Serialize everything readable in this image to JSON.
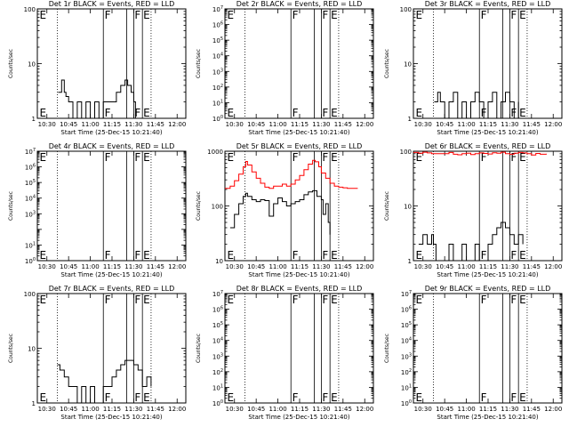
{
  "figure": {
    "x_tick_labels": [
      "10:30",
      "10:45",
      "11:00",
      "11:15",
      "11:30",
      "11:45",
      "12:00"
    ]
  },
  "chart_data": [
    {
      "type": "line",
      "title": "Det 1r BLACK = Events, RED = LLD",
      "xlabel": "Start Time (25-Dec-15 10:21:40)",
      "ylabel": "Counts/sec",
      "xlim": [
        10.39,
        12.1
      ],
      "ylim": [
        1,
        100
      ],
      "yscale": "log",
      "y_tick_labels": [
        {
          "v": 1,
          "label": "1"
        },
        {
          "v": 10,
          "label": "10"
        },
        {
          "v": 100,
          "label": "100"
        }
      ],
      "dotted_lines_x": [
        10.62,
        11.7
      ],
      "solid_lines_x": [
        11.15,
        11.42,
        11.5,
        11.6
      ],
      "markers": [
        {
          "x": 10.415,
          "label": "E"
        },
        {
          "x": 11.165,
          "label": "F"
        },
        {
          "x": 11.51,
          "label": "F"
        },
        {
          "x": 11.61,
          "label": "E"
        }
      ],
      "series": [
        {
          "name": "Events",
          "color": "#000000",
          "x": [
            10.63,
            10.67,
            10.7,
            10.72,
            10.75,
            10.8,
            10.85,
            10.9,
            10.95,
            11,
            11.05,
            11.1,
            11.15,
            11.2,
            11.25,
            11.3,
            11.35,
            11.4,
            11.43,
            11.47,
            11.5,
            11.52
          ],
          "y": [
            3,
            5,
            3,
            2.5,
            2,
            1,
            2,
            1,
            2,
            1,
            2,
            1,
            2,
            2,
            2,
            3,
            4,
            5,
            4,
            3,
            2,
            1
          ]
        }
      ]
    },
    {
      "type": "line",
      "title": "Det 2r BLACK = Events, RED = LLD",
      "xlabel": "Start Time (25-Dec-15 10:21:40)",
      "ylabel": "Counts/sec",
      "xlim": [
        10.39,
        12.1
      ],
      "ylim": [
        1,
        10000000
      ],
      "yscale": "log",
      "y_tick_labels": [
        {
          "v": 1,
          "label": "10^0"
        },
        {
          "v": 10,
          "label": "10^1"
        },
        {
          "v": 100,
          "label": "10^2"
        },
        {
          "v": 1000,
          "label": "10^3"
        },
        {
          "v": 10000,
          "label": "10^4"
        },
        {
          "v": 100000,
          "label": "10^5"
        },
        {
          "v": 1000000,
          "label": "10^6"
        },
        {
          "v": 10000000,
          "label": "10^7"
        }
      ],
      "dotted_lines_x": [
        10.62,
        11.7
      ],
      "solid_lines_x": [
        11.15,
        11.42,
        11.5,
        11.6
      ],
      "markers": [
        {
          "x": 10.415,
          "label": "E"
        },
        {
          "x": 11.165,
          "label": "F"
        },
        {
          "x": 11.51,
          "label": "F"
        },
        {
          "x": 11.61,
          "label": "E"
        }
      ],
      "series": []
    },
    {
      "type": "line",
      "title": "Det 3r BLACK = Events, RED = LLD",
      "xlabel": "Start Time (25-Dec-15 10:21:40)",
      "ylabel": "Counts/sec",
      "xlim": [
        10.39,
        12.1
      ],
      "ylim": [
        1,
        100
      ],
      "yscale": "log",
      "y_tick_labels": [
        {
          "v": 1,
          "label": "1"
        },
        {
          "v": 10,
          "label": "10"
        },
        {
          "v": 100,
          "label": "100"
        }
      ],
      "dotted_lines_x": [
        10.62,
        11.7
      ],
      "solid_lines_x": [
        11.15,
        11.42,
        11.5,
        11.6
      ],
      "markers": [
        {
          "x": 10.415,
          "label": "E"
        },
        {
          "x": 11.165,
          "label": "F"
        },
        {
          "x": 11.51,
          "label": "F"
        },
        {
          "x": 11.61,
          "label": "E"
        }
      ],
      "series": [
        {
          "name": "Events",
          "color": "#000000",
          "x": [
            10.63,
            10.67,
            10.7,
            10.75,
            10.8,
            10.85,
            10.9,
            10.95,
            11,
            11.05,
            11.1,
            11.15,
            11.2,
            11.25,
            11.3,
            11.35,
            11.4,
            11.45,
            11.5,
            11.55,
            11.6
          ],
          "y": [
            2,
            3,
            2,
            1,
            2,
            3,
            1,
            2,
            1,
            2,
            3,
            2,
            1,
            2,
            3,
            1,
            2,
            3,
            2,
            1,
            2
          ]
        }
      ]
    },
    {
      "type": "line",
      "title": "Det 4r BLACK = Events, RED = LLD",
      "xlabel": "Start Time (25-Dec-15 10:21:40)",
      "ylabel": "Counts/sec",
      "xlim": [
        10.39,
        12.1
      ],
      "ylim": [
        1,
        10000000
      ],
      "yscale": "log",
      "y_tick_labels": [
        {
          "v": 1,
          "label": "10^0"
        },
        {
          "v": 10,
          "label": "10^1"
        },
        {
          "v": 1000,
          "label": "10^3"
        },
        {
          "v": 10000,
          "label": "10^4"
        },
        {
          "v": 100000,
          "label": "10^5"
        },
        {
          "v": 1000000,
          "label": "10^6"
        },
        {
          "v": 10000000,
          "label": "10^7"
        }
      ],
      "dotted_lines_x": [
        10.62,
        11.7
      ],
      "solid_lines_x": [
        11.15,
        11.42,
        11.5,
        11.6
      ],
      "markers": [
        {
          "x": 10.415,
          "label": "E"
        },
        {
          "x": 11.165,
          "label": "F"
        },
        {
          "x": 11.51,
          "label": "F"
        },
        {
          "x": 11.61,
          "label": "E"
        }
      ],
      "series": []
    },
    {
      "type": "line",
      "title": "Det 5r BLACK = Events, RED = LLD",
      "xlabel": "Start Time (25-Dec-15 10:21:40)",
      "ylabel": "Counts/sec",
      "xlim": [
        10.39,
        12.1
      ],
      "ylim": [
        10,
        1000
      ],
      "yscale": "log",
      "y_tick_labels": [
        {
          "v": 10,
          "label": "10"
        },
        {
          "v": 100,
          "label": "100"
        },
        {
          "v": 1000,
          "label": "1000"
        }
      ],
      "dotted_lines_x": [
        10.62,
        11.7
      ],
      "solid_lines_x": [
        11.15,
        11.42,
        11.5,
        11.6
      ],
      "markers": [
        {
          "x": 10.415,
          "label": "E"
        },
        {
          "x": 11.165,
          "label": "F"
        },
        {
          "x": 11.51,
          "label": "F"
        },
        {
          "x": 11.61,
          "label": "E"
        }
      ],
      "series": [
        {
          "name": "LLD",
          "color": "#ff0000",
          "x": [
            10.39,
            10.45,
            10.5,
            10.55,
            10.6,
            10.63,
            10.65,
            10.7,
            10.75,
            10.8,
            10.85,
            10.9,
            10.95,
            11,
            11.05,
            11.1,
            11.15,
            11.2,
            11.25,
            11.3,
            11.35,
            11.4,
            11.43,
            11.47,
            11.5,
            11.55,
            11.6,
            11.65,
            11.7,
            11.75,
            11.8,
            11.85,
            11.92
          ],
          "y": [
            210,
            230,
            290,
            380,
            520,
            650,
            560,
            420,
            320,
            260,
            220,
            210,
            230,
            230,
            250,
            230,
            250,
            300,
            360,
            460,
            580,
            680,
            640,
            520,
            400,
            320,
            260,
            230,
            220,
            215,
            210,
            210,
            210
          ]
        },
        {
          "name": "Events",
          "color": "#000000",
          "x": [
            10.45,
            10.5,
            10.55,
            10.6,
            10.63,
            10.65,
            10.7,
            10.75,
            10.8,
            10.85,
            10.9,
            10.95,
            11,
            11.05,
            11.1,
            11.15,
            11.2,
            11.25,
            11.3,
            11.35,
            11.4,
            11.45,
            11.5,
            11.52,
            11.55,
            11.58,
            11.6
          ],
          "y": [
            40,
            70,
            110,
            150,
            170,
            150,
            130,
            120,
            130,
            125,
            65,
            110,
            140,
            120,
            100,
            110,
            120,
            130,
            160,
            180,
            190,
            150,
            130,
            70,
            110,
            50,
            30
          ]
        }
      ]
    },
    {
      "type": "line",
      "title": "Det 6r BLACK = Events, RED = LLD",
      "xlabel": "Start Time (25-Dec-15 10:21:40)",
      "ylabel": "Counts/sec",
      "xlim": [
        10.39,
        12.1
      ],
      "ylim": [
        1,
        100
      ],
      "yscale": "log",
      "y_tick_labels": [
        {
          "v": 1,
          "label": "1"
        },
        {
          "v": 10,
          "label": "10"
        },
        {
          "v": 100,
          "label": "100"
        }
      ],
      "dotted_lines_x": [
        10.62,
        11.7
      ],
      "solid_lines_x": [
        11.15,
        11.42,
        11.5,
        11.6
      ],
      "markers": [
        {
          "x": 10.415,
          "label": "E"
        },
        {
          "x": 11.165,
          "label": "F"
        },
        {
          "x": 11.51,
          "label": "F"
        },
        {
          "x": 11.61,
          "label": "E"
        }
      ],
      "series": [
        {
          "name": "LLD",
          "color": "#ff0000",
          "x": [
            10.39,
            10.45,
            10.5,
            10.55,
            10.6,
            10.62,
            10.8,
            10.85,
            10.9,
            10.95,
            11,
            11.05,
            11.1,
            11.15,
            11.2,
            11.25,
            11.3,
            11.35,
            11.4,
            11.45,
            11.5,
            11.55,
            11.6,
            11.65,
            11.7,
            11.75,
            11.8,
            11.85,
            11.92
          ],
          "y": [
            95,
            92,
            96,
            93,
            90,
            90,
            95,
            88,
            86,
            90,
            92,
            87,
            90,
            93,
            91,
            89,
            94,
            92,
            96,
            90,
            88,
            92,
            95,
            93,
            90,
            85,
            91,
            88,
            90
          ]
        },
        {
          "name": "Events",
          "color": "#000000",
          "x": [
            10.45,
            10.5,
            10.55,
            10.6,
            10.62,
            10.65,
            10.7,
            10.75,
            10.8,
            10.85,
            10.9,
            10.95,
            11,
            11.05,
            11.1,
            11.15,
            11.2,
            11.25,
            11.3,
            11.35,
            11.4,
            11.45,
            11.5,
            11.55,
            11.6,
            11.65
          ],
          "y": [
            2,
            3,
            2,
            3,
            2,
            1,
            1,
            1,
            2,
            1,
            1,
            2,
            1,
            1,
            2,
            1,
            1,
            2,
            3,
            4,
            5,
            4,
            3,
            2,
            3,
            2
          ]
        }
      ]
    },
    {
      "type": "line",
      "title": "Det 7r BLACK = Events, RED = LLD",
      "xlabel": "Start Time (25-Dec-15 10:21:40)",
      "ylabel": "Counts/sec",
      "xlim": [
        10.39,
        12.1
      ],
      "ylim": [
        1,
        100
      ],
      "yscale": "log",
      "y_tick_labels": [
        {
          "v": 1,
          "label": "1"
        },
        {
          "v": 10,
          "label": "10"
        },
        {
          "v": 100,
          "label": "100"
        }
      ],
      "dotted_lines_x": [
        10.62,
        11.7
      ],
      "solid_lines_x": [
        11.15,
        11.42,
        11.5,
        11.6
      ],
      "markers": [
        {
          "x": 10.415,
          "label": "E"
        },
        {
          "x": 11.165,
          "label": "F"
        },
        {
          "x": 11.51,
          "label": "F"
        },
        {
          "x": 11.61,
          "label": "E"
        }
      ],
      "series": [
        {
          "name": "Events",
          "color": "#000000",
          "x": [
            10.62,
            10.65,
            10.7,
            10.75,
            10.8,
            10.85,
            10.9,
            10.95,
            11,
            11.05,
            11.1,
            11.15,
            11.2,
            11.25,
            11.3,
            11.35,
            11.4,
            11.45,
            11.5,
            11.55,
            11.6,
            11.65,
            11.7
          ],
          "y": [
            5,
            4,
            3,
            2,
            2,
            1,
            2,
            1,
            2,
            1,
            1,
            2,
            2,
            3,
            4,
            5,
            6,
            6,
            5,
            4,
            2,
            3,
            2
          ]
        }
      ]
    },
    {
      "type": "line",
      "title": "Det 8r BLACK = Events, RED = LLD",
      "xlabel": "Start Time (25-Dec-15 10:21:40)",
      "ylabel": "Counts/sec",
      "xlim": [
        10.39,
        12.1
      ],
      "ylim": [
        1,
        10000000
      ],
      "yscale": "log",
      "y_tick_labels": [
        {
          "v": 1,
          "label": "10^0"
        },
        {
          "v": 10,
          "label": "10^1"
        },
        {
          "v": 100,
          "label": "10^2"
        },
        {
          "v": 1000,
          "label": "10^3"
        },
        {
          "v": 10000,
          "label": "10^4"
        },
        {
          "v": 100000,
          "label": "10^5"
        },
        {
          "v": 1000000,
          "label": "10^6"
        },
        {
          "v": 10000000,
          "label": "10^7"
        }
      ],
      "dotted_lines_x": [
        10.62,
        11.7
      ],
      "solid_lines_x": [
        11.15,
        11.42,
        11.5,
        11.6
      ],
      "markers": [
        {
          "x": 10.415,
          "label": "E"
        },
        {
          "x": 11.165,
          "label": "F"
        },
        {
          "x": 11.51,
          "label": "F"
        },
        {
          "x": 11.61,
          "label": "E"
        }
      ],
      "series": []
    },
    {
      "type": "line",
      "title": "Det 9r BLACK = Events, RED = LLD",
      "xlabel": "Start Time (25-Dec-15 10:21:40)",
      "ylabel": "Counts/sec",
      "xlim": [
        10.39,
        12.1
      ],
      "ylim": [
        1,
        10000000
      ],
      "yscale": "log",
      "y_tick_labels": [
        {
          "v": 1,
          "label": "10^0"
        },
        {
          "v": 10,
          "label": "10^1"
        },
        {
          "v": 100,
          "label": "10^2"
        },
        {
          "v": 1000,
          "label": "10^3"
        },
        {
          "v": 10000,
          "label": "10^4"
        },
        {
          "v": 100000,
          "label": "10^5"
        },
        {
          "v": 1000000,
          "label": "10^6"
        },
        {
          "v": 10000000,
          "label": "10^7"
        }
      ],
      "dotted_lines_x": [
        10.62,
        11.7
      ],
      "solid_lines_x": [
        11.15,
        11.42,
        11.5,
        11.6
      ],
      "markers": [
        {
          "x": 10.415,
          "label": "E"
        },
        {
          "x": 11.165,
          "label": "F"
        },
        {
          "x": 11.51,
          "label": "F"
        },
        {
          "x": 11.61,
          "label": "E"
        }
      ],
      "series": []
    }
  ]
}
